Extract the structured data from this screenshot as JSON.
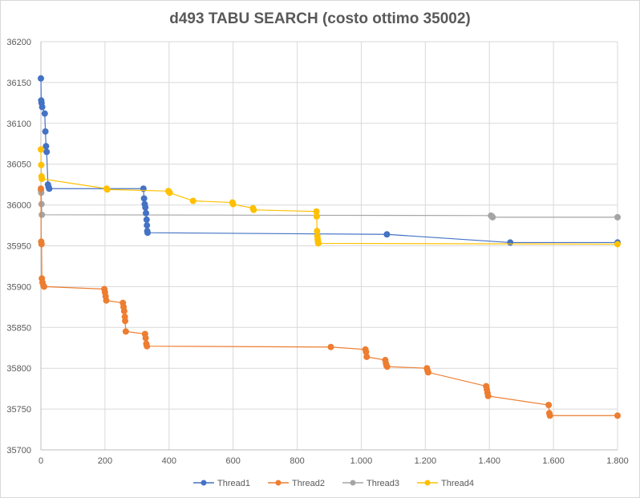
{
  "chart_data": {
    "type": "scatter",
    "title": "d493 TABU SEARCH (costo ottimo 35002)",
    "xlabel": "",
    "ylabel": "",
    "xlim": [
      0,
      1800
    ],
    "ylim": [
      35700,
      36200
    ],
    "x_ticks": [
      0,
      200,
      400,
      600,
      800,
      1000,
      1200,
      1400,
      1600,
      1800
    ],
    "x_tick_labels": [
      "0",
      "200",
      "400",
      "600",
      "800",
      "1.000",
      "1.200",
      "1.400",
      "1.600",
      "1.800"
    ],
    "y_ticks": [
      35700,
      35750,
      35800,
      35850,
      35900,
      35950,
      36000,
      36050,
      36100,
      36150,
      36200
    ],
    "y_tick_labels": [
      "35700",
      "35750",
      "35800",
      "35850",
      "35900",
      "35950",
      "36000",
      "36050",
      "36100",
      "36150",
      "36200"
    ],
    "grid": true,
    "legend_position": "bottom",
    "series": [
      {
        "name": "Thread1",
        "color": "#4472C4",
        "points": [
          [
            0,
            36155
          ],
          [
            1,
            36128
          ],
          [
            2,
            36125
          ],
          [
            4,
            36120
          ],
          [
            12,
            36112
          ],
          [
            14,
            36090
          ],
          [
            16,
            36072
          ],
          [
            18,
            36065
          ],
          [
            22,
            36025
          ],
          [
            24,
            36022
          ],
          [
            26,
            36020
          ],
          [
            320,
            36020
          ],
          [
            322,
            36008
          ],
          [
            324,
            36001
          ],
          [
            326,
            35997
          ],
          [
            328,
            35990
          ],
          [
            330,
            35982
          ],
          [
            331,
            35975
          ],
          [
            332,
            35968
          ],
          [
            333,
            35966
          ],
          [
            1080,
            35964
          ],
          [
            1465,
            35954
          ],
          [
            1800,
            35954
          ]
        ]
      },
      {
        "name": "Thread2",
        "color": "#ED7D31",
        "points": [
          [
            0,
            36020
          ],
          [
            1,
            35955
          ],
          [
            2,
            35952
          ],
          [
            3,
            35910
          ],
          [
            5,
            35905
          ],
          [
            8,
            35901
          ],
          [
            10,
            35900
          ],
          [
            198,
            35897
          ],
          [
            200,
            35893
          ],
          [
            202,
            35888
          ],
          [
            204,
            35883
          ],
          [
            256,
            35880
          ],
          [
            258,
            35875
          ],
          [
            260,
            35870
          ],
          [
            262,
            35863
          ],
          [
            263,
            35858
          ],
          [
            265,
            35845
          ],
          [
            325,
            35842
          ],
          [
            327,
            35837
          ],
          [
            329,
            35830
          ],
          [
            331,
            35827
          ],
          [
            905,
            35826
          ],
          [
            1013,
            35823
          ],
          [
            1015,
            35820
          ],
          [
            1017,
            35814
          ],
          [
            1075,
            35810
          ],
          [
            1077,
            35806
          ],
          [
            1079,
            35803
          ],
          [
            1081,
            35802
          ],
          [
            1205,
            35800
          ],
          [
            1207,
            35797
          ],
          [
            1209,
            35795
          ],
          [
            1390,
            35778
          ],
          [
            1392,
            35774
          ],
          [
            1394,
            35770
          ],
          [
            1396,
            35766
          ],
          [
            1585,
            35755
          ],
          [
            1587,
            35745
          ],
          [
            1589,
            35742
          ],
          [
            1800,
            35742
          ]
        ]
      },
      {
        "name": "Thread3",
        "color": "#A5A5A5",
        "points": [
          [
            0,
            36018
          ],
          [
            1,
            36015
          ],
          [
            2,
            36001
          ],
          [
            3,
            35988
          ],
          [
            1405,
            35987
          ],
          [
            1408,
            35986
          ],
          [
            1410,
            35985
          ],
          [
            1800,
            35985
          ]
        ]
      },
      {
        "name": "Thread4",
        "color": "#FFC000",
        "points": [
          [
            0,
            36068
          ],
          [
            1,
            36049
          ],
          [
            2,
            36035
          ],
          [
            3,
            36032
          ],
          [
            205,
            36020
          ],
          [
            207,
            36019
          ],
          [
            398,
            36017
          ],
          [
            400,
            36016
          ],
          [
            402,
            36015
          ],
          [
            475,
            36005
          ],
          [
            598,
            36003
          ],
          [
            600,
            36001
          ],
          [
            662,
            35996
          ],
          [
            664,
            35994
          ],
          [
            860,
            35992
          ],
          [
            861,
            35986
          ],
          [
            862,
            35968
          ],
          [
            863,
            35962
          ],
          [
            864,
            35958
          ],
          [
            865,
            35955
          ],
          [
            866,
            35953
          ],
          [
            1800,
            35952
          ]
        ]
      }
    ]
  }
}
